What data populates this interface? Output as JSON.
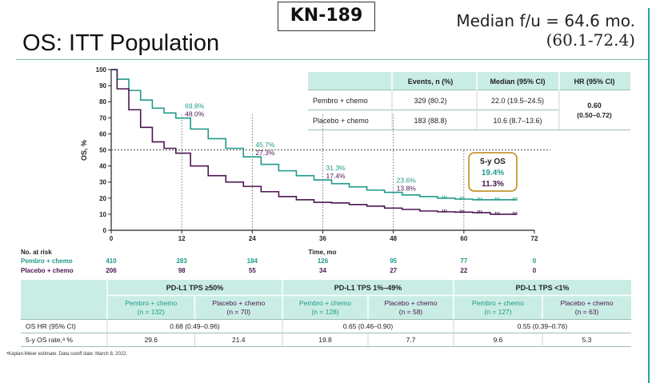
{
  "study": "KN-189",
  "median_followup_line1": "Median f/u = 64.6 mo.",
  "median_followup_line2": "(60.1-72.4)",
  "page_title": "OS: ITT Population",
  "colors": {
    "pembro": "#1f9a8a",
    "placebo": "#4b1650",
    "header_fill": "#c9ede4",
    "highlight_box": "#b8860b"
  },
  "summary_table": {
    "headers": [
      "",
      "Events, n (%)",
      "Median (95% CI)",
      "HR (95% CI)"
    ],
    "rows": [
      {
        "arm": "Pembro + chemo",
        "events": "329 (80.2)",
        "median": "22.0 (19.5–24.5)"
      },
      {
        "arm": "Placebo + chemo",
        "events": "183 (88.8)",
        "median": "10.6 (8.7–13.6)"
      }
    ],
    "hr_value": "0.60",
    "hr_ci": "(0.50–0.72)"
  },
  "chart_data": {
    "type": "line",
    "ylabel": "OS, %",
    "xlabel": "Time, mo",
    "xlim": [
      0,
      72
    ],
    "ylim": [
      0,
      100
    ],
    "xticks": [
      0,
      12,
      24,
      36,
      48,
      60,
      72
    ],
    "yticks": [
      0,
      10,
      20,
      30,
      40,
      50,
      60,
      70,
      80,
      90,
      100
    ],
    "reference_line_y": 50,
    "series": [
      {
        "name": "Pembro + chemo",
        "x": [
          0,
          2,
          4,
          6,
          8,
          10,
          12,
          15,
          18,
          21,
          24,
          27,
          30,
          33,
          36,
          39,
          42,
          45,
          48,
          51,
          54,
          57,
          60,
          63,
          66,
          69
        ],
        "y": [
          100,
          94,
          87,
          81,
          76,
          73,
          69.8,
          63,
          57,
          51,
          45.7,
          41,
          37,
          34,
          31.3,
          29,
          27,
          25,
          23.6,
          22,
          21,
          20,
          19.4,
          19,
          19,
          19
        ]
      },
      {
        "name": "Placebo + chemo",
        "x": [
          0,
          2,
          4,
          6,
          8,
          10,
          12,
          15,
          18,
          21,
          24,
          27,
          30,
          33,
          36,
          39,
          42,
          45,
          48,
          51,
          54,
          57,
          60,
          63,
          66,
          69
        ],
        "y": [
          100,
          88,
          75,
          64,
          55,
          51,
          48.0,
          40,
          34,
          30,
          27.3,
          24,
          21,
          19,
          17.4,
          17,
          16,
          15,
          13.8,
          13,
          12,
          11.5,
          11.3,
          11,
          10,
          10
        ]
      }
    ],
    "annotations": [
      {
        "x": 12,
        "pembro": "69.8%",
        "placebo": "48.0%"
      },
      {
        "x": 24,
        "pembro": "45.7%",
        "placebo": "27.3%"
      },
      {
        "x": 36,
        "pembro": "31.3%",
        "placebo": "17.4%"
      },
      {
        "x": 48,
        "pembro": "23.6%",
        "placebo": "13.8%"
      }
    ],
    "five_year_box": {
      "title": "5-y OS",
      "pembro": "19.4%",
      "placebo": "11.3%"
    }
  },
  "risk_table": {
    "title": "No. at risk",
    "rows": [
      {
        "arm": "Pembro + chemo",
        "values": [
          "410",
          "283",
          "184",
          "126",
          "95",
          "77",
          "0"
        ]
      },
      {
        "arm": "Placebo + chemo",
        "values": [
          "206",
          "98",
          "55",
          "34",
          "27",
          "22",
          "0"
        ]
      }
    ]
  },
  "subgroup_table": {
    "groups": [
      "PD-L1 TPS ≥50%",
      "PD-L1 TPS 1%–49%",
      "PD-L1 TPS <1%"
    ],
    "arms": [
      {
        "name": "Pembro + chemo",
        "n": "(n = 132)"
      },
      {
        "name": "Placebo + chemo",
        "n": "(n = 70)"
      },
      {
        "name": "Pembro + chemo",
        "n": "(n = 128)"
      },
      {
        "name": "Placebo + chemo",
        "n": "(n = 58)"
      },
      {
        "name": "Pembro + chemo",
        "n": "(n = 127)"
      },
      {
        "name": "Placebo + chemo",
        "n": "(n = 63)"
      }
    ],
    "hr_label": "OS HR (95% CI)",
    "hr_values": [
      "0.68 (0.49–0.96)",
      "0.65 (0.46–0.90)",
      "0.55 (0.39–0.76)"
    ],
    "rate_label": "5-y OS rate,ᵃ %",
    "rates": [
      "29.6",
      "21.4",
      "19.8",
      "7.7",
      "9.6",
      "5.3"
    ]
  },
  "footnote": "ᵃKaplan-Meier estimate.  Data cutoff date: March 8, 2022."
}
